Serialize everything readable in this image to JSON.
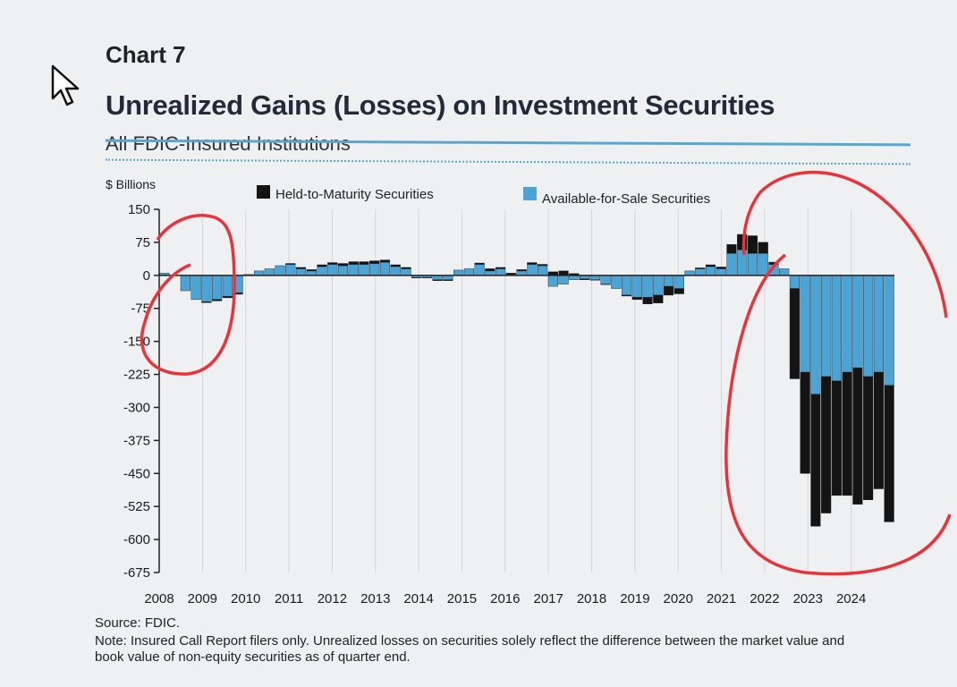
{
  "header": {
    "chart_number": "Chart 7",
    "title": "Unrealized Gains (Losses) on Investment Securities",
    "subtitle": "All FDIC-Insured Institutions"
  },
  "footer": {
    "source": "Source: FDIC.",
    "note": "Note: Insured Call Report filers only. Unrealized losses on securities solely reflect the difference between the market value and book value of non-equity securities as of quarter end."
  },
  "colors": {
    "htm": "#141414",
    "afs": "#4aa5d6",
    "annotation": "#e8333a"
  },
  "chart_data": {
    "type": "bar",
    "stacked": true,
    "ylabel": "$ Billions",
    "ylim": [
      -675,
      150
    ],
    "yticks": [
      150,
      75,
      0,
      -75,
      -150,
      -225,
      -300,
      -375,
      -450,
      -525,
      -600,
      -675
    ],
    "ytick_labels": [
      "150",
      "75",
      "0",
      "-75",
      "-150",
      "-225",
      "-300",
      "-375",
      "-450",
      "-525",
      "-600",
      "-675"
    ],
    "x_labels": [
      "2008",
      "2009",
      "2010",
      "2011",
      "2012",
      "2013",
      "2014",
      "2015",
      "2016",
      "2017",
      "2018",
      "2019",
      "2020",
      "2021",
      "2022",
      "2023",
      "2024"
    ],
    "legend": {
      "position": "top",
      "entries": [
        "Held-to-Maturity Securities",
        "Available-for-Sale Securities"
      ]
    },
    "series": [
      {
        "name": "Held-to-Maturity Securities",
        "values": [
          0,
          0,
          0,
          0,
          -2,
          -3,
          -3,
          -3,
          -1,
          -1,
          0,
          0,
          2,
          3,
          3,
          4,
          4,
          5,
          6,
          6,
          6,
          5,
          4,
          3,
          -1,
          -1,
          -2,
          -2,
          0,
          0,
          3,
          5,
          3,
          3,
          3,
          4,
          3,
          8,
          10,
          4,
          -2,
          -1,
          -1,
          0,
          -2,
          -5,
          -15,
          -18,
          -20,
          -12,
          0,
          2,
          4,
          4,
          20,
          35,
          40,
          25,
          5,
          0,
          -205,
          -230,
          -300,
          -310,
          -260,
          -280,
          -310,
          -280,
          -265,
          -310
        ]
      },
      {
        "name": "Available-for-Sale Securities",
        "values": [
          5,
          0,
          -35,
          -55,
          -60,
          -55,
          -48,
          -40,
          2,
          10,
          15,
          22,
          25,
          15,
          10,
          20,
          25,
          22,
          25,
          25,
          27,
          30,
          20,
          15,
          -5,
          -5,
          -10,
          -10,
          12,
          15,
          25,
          10,
          15,
          2,
          10,
          25,
          22,
          -25,
          -20,
          -10,
          -8,
          -10,
          -20,
          -30,
          -45,
          -50,
          -50,
          -45,
          -25,
          -30,
          10,
          15,
          20,
          15,
          50,
          58,
          50,
          50,
          25,
          15,
          -30,
          -220,
          -270,
          -230,
          -240,
          -220,
          -210,
          -230,
          -220,
          -250
        ]
      }
    ],
    "annotations": [
      "red circle around 2008-2009 dip",
      "red circle around 2022-2024 losses"
    ]
  }
}
